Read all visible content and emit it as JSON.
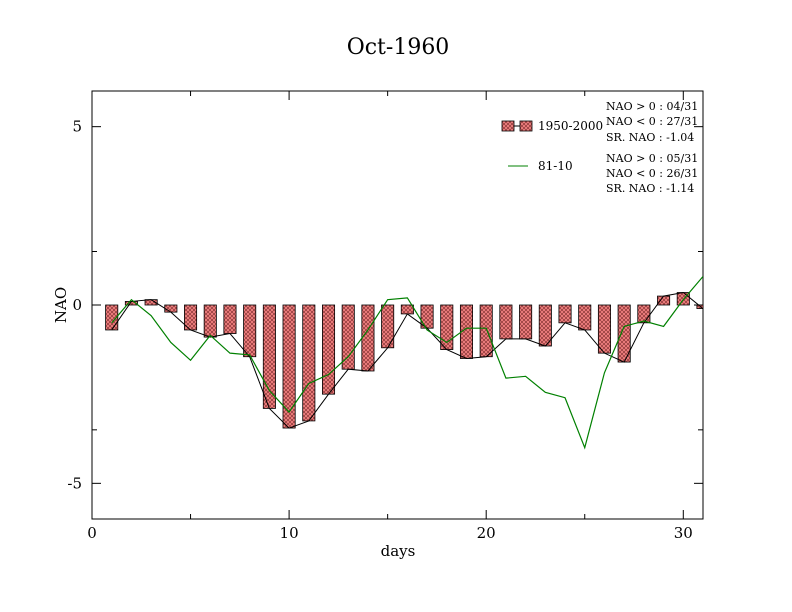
{
  "chart_data": {
    "type": "bar",
    "title": "Oct-1960",
    "xlabel": "days",
    "ylabel": "NAO",
    "xlim": [
      0,
      31
    ],
    "ylim": [
      -6,
      6
    ],
    "xticks": [
      0,
      10,
      20,
      30
    ],
    "xtick_labels": [
      "0",
      "10",
      "20",
      "30"
    ],
    "yticks": [
      -5,
      0,
      5
    ],
    "ytick_labels": [
      "-5",
      "0",
      "5"
    ],
    "x": [
      1,
      2,
      3,
      4,
      5,
      6,
      7,
      8,
      9,
      10,
      11,
      12,
      13,
      14,
      15,
      16,
      17,
      18,
      19,
      20,
      21,
      22,
      23,
      24,
      25,
      26,
      27,
      28,
      29,
      30,
      31
    ],
    "series": [
      {
        "name": "1950-2000",
        "kind": "bar",
        "color": "#f08080",
        "values": [
          -0.7,
          0.1,
          0.15,
          -0.2,
          -0.7,
          -0.9,
          -0.8,
          -1.45,
          -2.9,
          -3.45,
          -3.25,
          -2.5,
          -1.8,
          -1.85,
          -1.2,
          -0.25,
          -0.65,
          -1.25,
          -1.5,
          -1.45,
          -0.95,
          -0.95,
          -1.15,
          -0.5,
          -0.7,
          -1.35,
          -1.6,
          -0.5,
          0.25,
          0.35,
          -0.1
        ]
      },
      {
        "name": "81-10",
        "kind": "line",
        "color": "#008000",
        "values": [
          -0.5,
          0.15,
          -0.3,
          -1.05,
          -1.55,
          -0.85,
          -1.35,
          -1.4,
          -2.4,
          -3.0,
          -2.2,
          -1.95,
          -1.45,
          -0.7,
          0.15,
          0.2,
          -0.7,
          -1.05,
          -0.65,
          -0.65,
          -2.05,
          -2.0,
          -2.45,
          -2.6,
          -4.0,
          -1.9,
          -0.6,
          -0.45,
          -0.6,
          0.15,
          0.8
        ]
      }
    ],
    "legend": [
      {
        "label": "1950-2000",
        "stats": [
          "NAO > 0 : 04/31",
          "NAO < 0 : 27/31",
          "SR. NAO : -1.04"
        ]
      },
      {
        "label": "81-10",
        "stats": [
          "NAO > 0 : 05/31",
          "NAO < 0 : 26/31",
          "SR. NAO : -1.14"
        ]
      }
    ],
    "legend_position": "top-right",
    "grid": false
  }
}
